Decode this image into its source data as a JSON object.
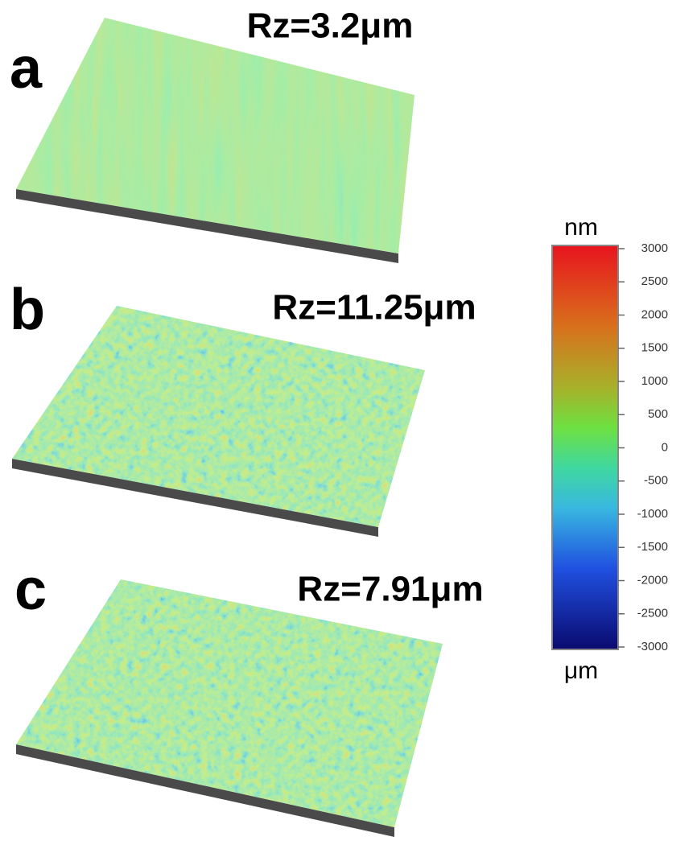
{
  "panels": [
    {
      "label": "a",
      "title": "Rz=3.2μm"
    },
    {
      "label": "b",
      "title": "Rz=11.25μm"
    },
    {
      "label": "c",
      "title": "Rz=7.91μm"
    }
  ],
  "colorbar": {
    "unit_top": "nm",
    "unit_bottom": "μm",
    "ticks": [
      3000,
      2500,
      2000,
      1500,
      1000,
      500,
      0,
      -500,
      -1000,
      -1500,
      -2000,
      -2500,
      -3000
    ]
  }
}
